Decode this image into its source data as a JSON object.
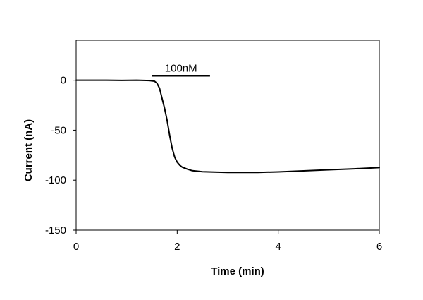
{
  "chart_data": {
    "type": "line",
    "title": "",
    "xlabel": "Time (min)",
    "ylabel": "Current (nA)",
    "xlim": [
      0,
      6
    ],
    "ylim": [
      -150,
      40
    ],
    "x_ticks": [
      0,
      2,
      4,
      6
    ],
    "x_tick_labels": [
      "0",
      "2",
      "4",
      "6"
    ],
    "y_ticks": [
      0,
      -50,
      -100,
      -150
    ],
    "y_tick_labels": [
      "0",
      "-50",
      "-100",
      "-150"
    ],
    "grid": false,
    "legend": "none",
    "series": [
      {
        "color": "#000000",
        "x": [
          0,
          0.3,
          0.6,
          0.9,
          1.2,
          1.45,
          1.55,
          1.6,
          1.65,
          1.7,
          1.75,
          1.8,
          1.85,
          1.9,
          1.95,
          2.0,
          2.05,
          2.1,
          2.2,
          2.3,
          2.5,
          2.8,
          3.0,
          3.3,
          3.6,
          4.0,
          4.5,
          5.0,
          5.5,
          6.0
        ],
        "y": [
          0,
          0,
          0,
          -0.2,
          0,
          -0.3,
          -1,
          -3,
          -8,
          -18,
          -28,
          -40,
          -55,
          -68,
          -77,
          -82,
          -85,
          -87,
          -89,
          -90.5,
          -91.5,
          -92,
          -92.3,
          -92.3,
          -92.2,
          -91.7,
          -90.7,
          -89.6,
          -88.6,
          -87.4
        ]
      }
    ],
    "annotation": {
      "label": "100nM",
      "bar_start": 1.5,
      "bar_end": 2.65,
      "bar_y": 4.5
    }
  }
}
